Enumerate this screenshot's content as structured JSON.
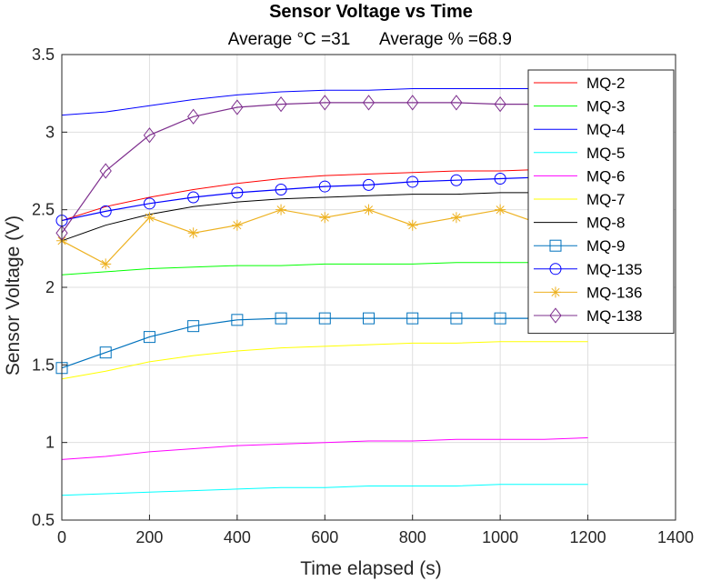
{
  "chart_data": {
    "type": "line",
    "title": "Sensor Voltage vs Time",
    "subtitle_left": "Average °C =31",
    "subtitle_right": "Average % =68.9",
    "xlabel": "Time elapsed (s)",
    "ylabel": "Sensor Voltage (V)",
    "xlim": [
      0,
      1400
    ],
    "ylim": [
      0.5,
      3.5
    ],
    "xticks": [
      "0",
      "200",
      "400",
      "600",
      "800",
      "1000",
      "1200",
      "1400"
    ],
    "yticks": [
      "0.5",
      "1",
      "1.5",
      "2",
      "2.5",
      "3",
      "3.5"
    ],
    "grid": true,
    "legend_position": "top-right",
    "x": [
      0,
      100,
      200,
      300,
      400,
      500,
      600,
      700,
      800,
      900,
      1000,
      1100,
      1200
    ],
    "series": [
      {
        "name": "MQ-2",
        "color": "#ff0000",
        "marker": "none",
        "values": [
          2.43,
          2.52,
          2.58,
          2.63,
          2.67,
          2.7,
          2.72,
          2.73,
          2.74,
          2.75,
          2.75,
          2.76,
          2.76
        ]
      },
      {
        "name": "MQ-3",
        "color": "#00ff00",
        "marker": "none",
        "values": [
          2.08,
          2.1,
          2.12,
          2.13,
          2.14,
          2.14,
          2.15,
          2.15,
          2.15,
          2.16,
          2.16,
          2.16,
          2.16
        ]
      },
      {
        "name": "MQ-4",
        "color": "#0000ff",
        "marker": "none",
        "values": [
          3.11,
          3.13,
          3.17,
          3.21,
          3.24,
          3.26,
          3.27,
          3.27,
          3.28,
          3.28,
          3.28,
          3.28,
          3.28
        ]
      },
      {
        "name": "MQ-5",
        "color": "#00ffff",
        "marker": "none",
        "values": [
          0.66,
          0.67,
          0.68,
          0.69,
          0.7,
          0.71,
          0.71,
          0.72,
          0.72,
          0.72,
          0.73,
          0.73,
          0.73
        ]
      },
      {
        "name": "MQ-6",
        "color": "#ff00ff",
        "marker": "none",
        "values": [
          0.89,
          0.91,
          0.94,
          0.96,
          0.98,
          0.99,
          1.0,
          1.01,
          1.01,
          1.02,
          1.02,
          1.02,
          1.03
        ]
      },
      {
        "name": "MQ-7",
        "color": "#ffff00",
        "marker": "none",
        "values": [
          1.41,
          1.46,
          1.52,
          1.56,
          1.59,
          1.61,
          1.62,
          1.63,
          1.64,
          1.64,
          1.65,
          1.65,
          1.65
        ]
      },
      {
        "name": "MQ-8",
        "color": "#000000",
        "marker": "none",
        "values": [
          2.3,
          2.4,
          2.47,
          2.52,
          2.55,
          2.57,
          2.58,
          2.59,
          2.6,
          2.6,
          2.61,
          2.61,
          2.61
        ]
      },
      {
        "name": "MQ-9",
        "color": "#0072bd",
        "marker": "square",
        "values": [
          1.48,
          1.58,
          1.68,
          1.75,
          1.79,
          1.8,
          1.8,
          1.8,
          1.8,
          1.8,
          1.8,
          1.8,
          1.8
        ]
      },
      {
        "name": "MQ-135",
        "color": "#0000ff",
        "marker": "circle",
        "values": [
          2.43,
          2.49,
          2.54,
          2.58,
          2.61,
          2.63,
          2.65,
          2.66,
          2.68,
          2.69,
          2.7,
          2.71,
          2.72
        ]
      },
      {
        "name": "MQ-136",
        "color": "#edb120",
        "marker": "star",
        "values": [
          2.3,
          2.15,
          2.45,
          2.35,
          2.4,
          2.5,
          2.45,
          2.5,
          2.4,
          2.45,
          2.5,
          2.4,
          2.45
        ]
      },
      {
        "name": "MQ-138",
        "color": "#7e2f8e",
        "marker": "diamond",
        "values": [
          2.35,
          2.75,
          2.98,
          3.1,
          3.16,
          3.18,
          3.19,
          3.19,
          3.19,
          3.19,
          3.18,
          3.18,
          3.18
        ]
      }
    ]
  }
}
